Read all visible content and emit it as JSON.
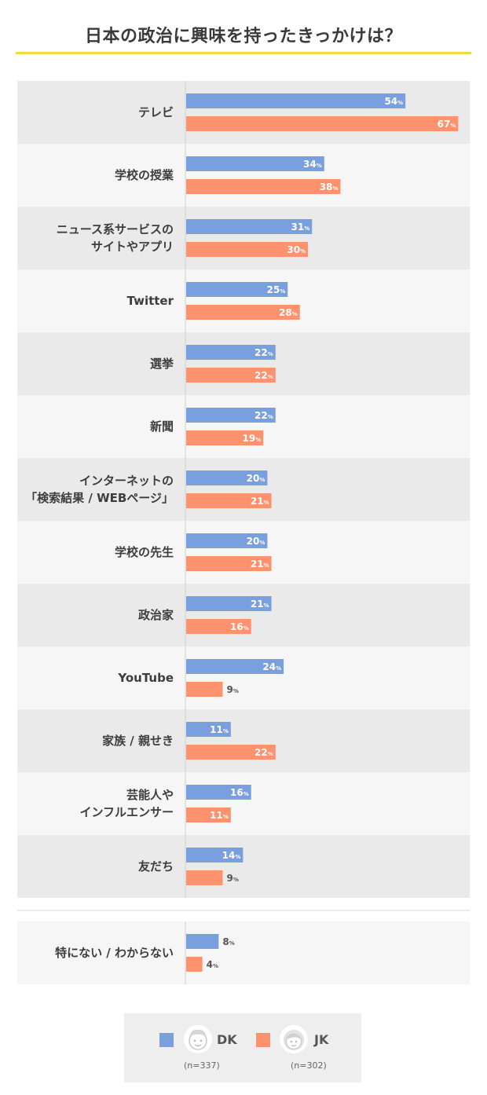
{
  "title": "日本の政治に興味を持ったきっかけは？",
  "colors": {
    "dk": "#7a9fdf",
    "jk": "#fe926f",
    "row_a": "#eaeaea",
    "row_b": "#f6f6f6",
    "accent": "#f2dc3c"
  },
  "legend": {
    "dk": {
      "name": "DK",
      "n": "(n=337)",
      "icon": "boy-face-icon"
    },
    "jk": {
      "name": "JK",
      "n": "(n=302)",
      "icon": "girl-face-icon"
    }
  },
  "chart_data": {
    "type": "bar",
    "orientation": "horizontal",
    "title": "日本の政治に興味を持ったきっかけは？",
    "unit": "%",
    "xlim": [
      0,
      70
    ],
    "series": [
      {
        "name": "DK",
        "n": "(n=337)"
      },
      {
        "name": "JK",
        "n": "(n=302)"
      }
    ],
    "rows": [
      {
        "label": [
          "テレビ"
        ],
        "dk": 54,
        "jk": 67
      },
      {
        "label": [
          "学校の授業"
        ],
        "dk": 34,
        "jk": 38
      },
      {
        "label": [
          "ニュース系サービスの",
          "サイトやアプリ"
        ],
        "dk": 31,
        "jk": 30
      },
      {
        "label": [
          "Twitter"
        ],
        "dk": 25,
        "jk": 28
      },
      {
        "label": [
          "選挙"
        ],
        "dk": 22,
        "jk": 22
      },
      {
        "label": [
          "新聞"
        ],
        "dk": 22,
        "jk": 19
      },
      {
        "label": [
          "インターネットの",
          "「検索結果 / WEBページ」"
        ],
        "dk": 20,
        "jk": 21
      },
      {
        "label": [
          "学校の先生"
        ],
        "dk": 20,
        "jk": 21
      },
      {
        "label": [
          "政治家"
        ],
        "dk": 21,
        "jk": 16
      },
      {
        "label": [
          "YouTube"
        ],
        "dk": 24,
        "jk": 9
      },
      {
        "label": [
          "家族 / 親せき"
        ],
        "dk": 11,
        "jk": 22
      },
      {
        "label": [
          "芸能人や",
          "インフルエンサー"
        ],
        "dk": 16,
        "jk": 11
      },
      {
        "label": [
          "友だち"
        ],
        "dk": 14,
        "jk": 9
      }
    ],
    "extra_rows": [
      {
        "label": [
          "特にない / わからない"
        ],
        "dk": 8,
        "jk": 4
      }
    ]
  }
}
